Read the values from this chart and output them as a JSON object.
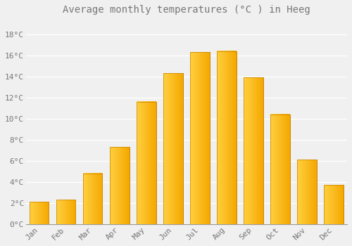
{
  "title": "Average monthly temperatures (°C ) in Heeg",
  "months": [
    "Jan",
    "Feb",
    "Mar",
    "Apr",
    "May",
    "Jun",
    "Jul",
    "Aug",
    "Sep",
    "Oct",
    "Nov",
    "Dec"
  ],
  "values": [
    2.1,
    2.3,
    4.8,
    7.3,
    11.6,
    14.3,
    16.3,
    16.4,
    13.9,
    10.4,
    6.1,
    3.7
  ],
  "bar_color_left": "#FFD040",
  "bar_color_right": "#F5A800",
  "bar_edge_color": "#C88000",
  "background_color": "#F0F0F0",
  "grid_color": "#FFFFFF",
  "ytick_labels": [
    "0°C",
    "2°C",
    "4°C",
    "6°C",
    "8°C",
    "10°C",
    "12°C",
    "14°C",
    "16°C",
    "18°C"
  ],
  "ytick_values": [
    0,
    2,
    4,
    6,
    8,
    10,
    12,
    14,
    16,
    18
  ],
  "ylim": [
    0,
    19.5
  ],
  "title_fontsize": 10,
  "tick_fontsize": 8,
  "font_color": "#777777"
}
